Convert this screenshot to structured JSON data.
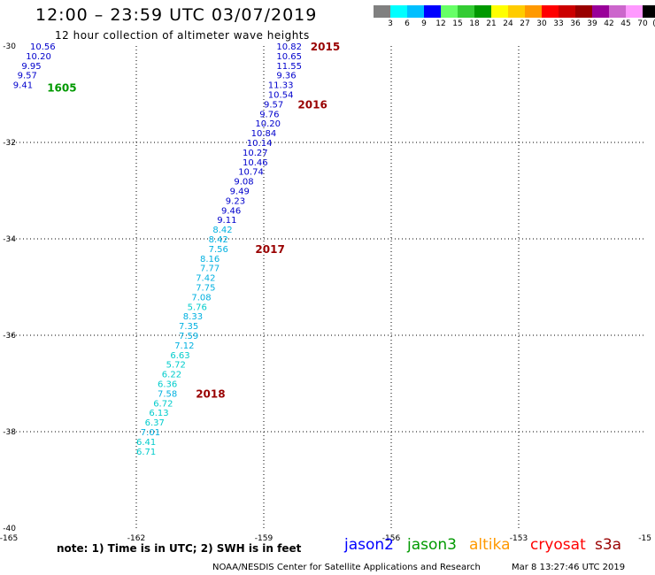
{
  "header": {
    "title": "12:00 – 23:59 UTC 03/07/2019",
    "subtitle": "12 hour collection of altimeter wave heights"
  },
  "color_scale": {
    "colors": [
      "#808080",
      "#00ffff",
      "#00bfff",
      "#0000ff",
      "#66ff66",
      "#33cc33",
      "#009900",
      "#ffff00",
      "#ffcc00",
      "#ff9900",
      "#ff0000",
      "#cc0000",
      "#990000",
      "#990099",
      "#cc66cc",
      "#ff99ff",
      "#000000"
    ],
    "labels": [
      "3",
      "6",
      "9",
      "12",
      "15",
      "18",
      "21",
      "24",
      "27",
      "30",
      "33",
      "36",
      "39",
      "42",
      "45",
      "70",
      "(ft)"
    ]
  },
  "map": {
    "lat_labels": [
      "-30",
      "-32",
      "-34",
      "-36",
      "-38",
      "-40"
    ],
    "lon_labels": [
      "-165",
      "-162",
      "-159",
      "-156",
      "-153",
      "-15"
    ],
    "gridlines": true
  },
  "observations": [
    {
      "lon": -164.5,
      "lat": -30.0,
      "value": "10.56",
      "color": "#0000cc"
    },
    {
      "lon": -164.6,
      "lat": -30.2,
      "value": "10.20",
      "color": "#0000cc"
    },
    {
      "lon": -164.7,
      "lat": -30.4,
      "value": "9.95",
      "color": "#0000cc"
    },
    {
      "lon": -164.8,
      "lat": -30.6,
      "value": "9.57",
      "color": "#0000cc"
    },
    {
      "lon": -164.9,
      "lat": -30.8,
      "value": "9.41",
      "color": "#0000cc"
    },
    {
      "lon": -158.7,
      "lat": -30.0,
      "value": "10.82",
      "color": "#0000cc"
    },
    {
      "lon": -158.7,
      "lat": -30.2,
      "value": "10.65",
      "color": "#0000cc"
    },
    {
      "lon": -158.7,
      "lat": -30.4,
      "value": "11.55",
      "color": "#0000cc"
    },
    {
      "lon": -158.7,
      "lat": -30.6,
      "value": "9.36",
      "color": "#0000cc"
    },
    {
      "lon": -158.9,
      "lat": -30.8,
      "value": "11.33",
      "color": "#0000cc"
    },
    {
      "lon": -158.9,
      "lat": -31.0,
      "value": "10.54",
      "color": "#0000cc"
    },
    {
      "lon": -159.0,
      "lat": -31.2,
      "value": "9.57",
      "color": "#0000cc"
    },
    {
      "lon": -159.1,
      "lat": -31.4,
      "value": "9.76",
      "color": "#0000cc"
    },
    {
      "lon": -159.2,
      "lat": -31.6,
      "value": "10.20",
      "color": "#0000cc"
    },
    {
      "lon": -159.3,
      "lat": -31.8,
      "value": "10.84",
      "color": "#0000cc"
    },
    {
      "lon": -159.4,
      "lat": -32.0,
      "value": "10.14",
      "color": "#0000cc"
    },
    {
      "lon": -159.5,
      "lat": -32.2,
      "value": "10.27",
      "color": "#0000cc"
    },
    {
      "lon": -159.5,
      "lat": -32.4,
      "value": "10.46",
      "color": "#0000cc"
    },
    {
      "lon": -159.6,
      "lat": -32.6,
      "value": "10.74",
      "color": "#0000cc"
    },
    {
      "lon": -159.7,
      "lat": -32.8,
      "value": "9.08",
      "color": "#0000cc"
    },
    {
      "lon": -159.8,
      "lat": -33.0,
      "value": "9.49",
      "color": "#0000cc"
    },
    {
      "lon": -159.9,
      "lat": -33.2,
      "value": "9.23",
      "color": "#0000cc"
    },
    {
      "lon": -160.0,
      "lat": -33.4,
      "value": "9.46",
      "color": "#0000cc"
    },
    {
      "lon": -160.1,
      "lat": -33.6,
      "value": "9.11",
      "color": "#0000cc"
    },
    {
      "lon": -160.2,
      "lat": -33.8,
      "value": "8.42",
      "color": "#00b0e0"
    },
    {
      "lon": -160.3,
      "lat": -34.0,
      "value": "8.42",
      "color": "#00b0e0"
    },
    {
      "lon": -160.3,
      "lat": -34.2,
      "value": "7.56",
      "color": "#00b0e0"
    },
    {
      "lon": -160.5,
      "lat": -34.4,
      "value": "8.16",
      "color": "#00b0e0"
    },
    {
      "lon": -160.5,
      "lat": -34.6,
      "value": "7.77",
      "color": "#00b0e0"
    },
    {
      "lon": -160.6,
      "lat": -34.8,
      "value": "7.42",
      "color": "#00b0e0"
    },
    {
      "lon": -160.6,
      "lat": -35.0,
      "value": "7.75",
      "color": "#00b0e0"
    },
    {
      "lon": -160.7,
      "lat": -35.2,
      "value": "7.08",
      "color": "#00b0e0"
    },
    {
      "lon": -160.8,
      "lat": -35.4,
      "value": "5.76",
      "color": "#00cccc"
    },
    {
      "lon": -160.9,
      "lat": -35.6,
      "value": "8.33",
      "color": "#00b0e0"
    },
    {
      "lon": -161.0,
      "lat": -35.8,
      "value": "7.35",
      "color": "#00b0e0"
    },
    {
      "lon": -161.0,
      "lat": -36.0,
      "value": "7.59",
      "color": "#00b0e0"
    },
    {
      "lon": -161.1,
      "lat": -36.2,
      "value": "7.12",
      "color": "#00b0e0"
    },
    {
      "lon": -161.2,
      "lat": -36.4,
      "value": "6.63",
      "color": "#00cccc"
    },
    {
      "lon": -161.3,
      "lat": -36.6,
      "value": "5.72",
      "color": "#00cccc"
    },
    {
      "lon": -161.4,
      "lat": -36.8,
      "value": "6.22",
      "color": "#00cccc"
    },
    {
      "lon": -161.5,
      "lat": -37.0,
      "value": "6.36",
      "color": "#00cccc"
    },
    {
      "lon": -161.5,
      "lat": -37.2,
      "value": "7.58",
      "color": "#00b0e0"
    },
    {
      "lon": -161.6,
      "lat": -37.4,
      "value": "6.72",
      "color": "#00cccc"
    },
    {
      "lon": -161.7,
      "lat": -37.6,
      "value": "6.13",
      "color": "#00cccc"
    },
    {
      "lon": -161.8,
      "lat": -37.8,
      "value": "6.37",
      "color": "#00cccc"
    },
    {
      "lon": -161.9,
      "lat": -38.0,
      "value": "7.01",
      "color": "#00b0e0"
    },
    {
      "lon": -162.0,
      "lat": -38.2,
      "value": "6.41",
      "color": "#00cccc"
    },
    {
      "lon": -162.0,
      "lat": -38.4,
      "value": "6.71",
      "color": "#00cccc"
    }
  ],
  "time_labels": [
    {
      "text": "2015",
      "color": "#990000"
    },
    {
      "text": "2016",
      "color": "#990000"
    },
    {
      "text": "2017",
      "color": "#990000"
    },
    {
      "text": "2018",
      "color": "#990000"
    },
    {
      "text": "1605",
      "color": "#009900"
    }
  ],
  "note": "note: 1) Time is in UTC; 2) SWH is in feet",
  "satellites": [
    {
      "name": "jason2",
      "color": "#0000ff"
    },
    {
      "name": "jason3",
      "color": "#009900"
    },
    {
      "name": "altika",
      "color": "#ff9900"
    },
    {
      "name": "cryosat",
      "color": "#ff0000"
    },
    {
      "name": "s3a",
      "color": "#990000"
    }
  ],
  "footer": {
    "credit": "NOAA/NESDIS Center for Satellite Applications and Research",
    "generated": "Mar  8 13:27:46 UTC 2019"
  }
}
